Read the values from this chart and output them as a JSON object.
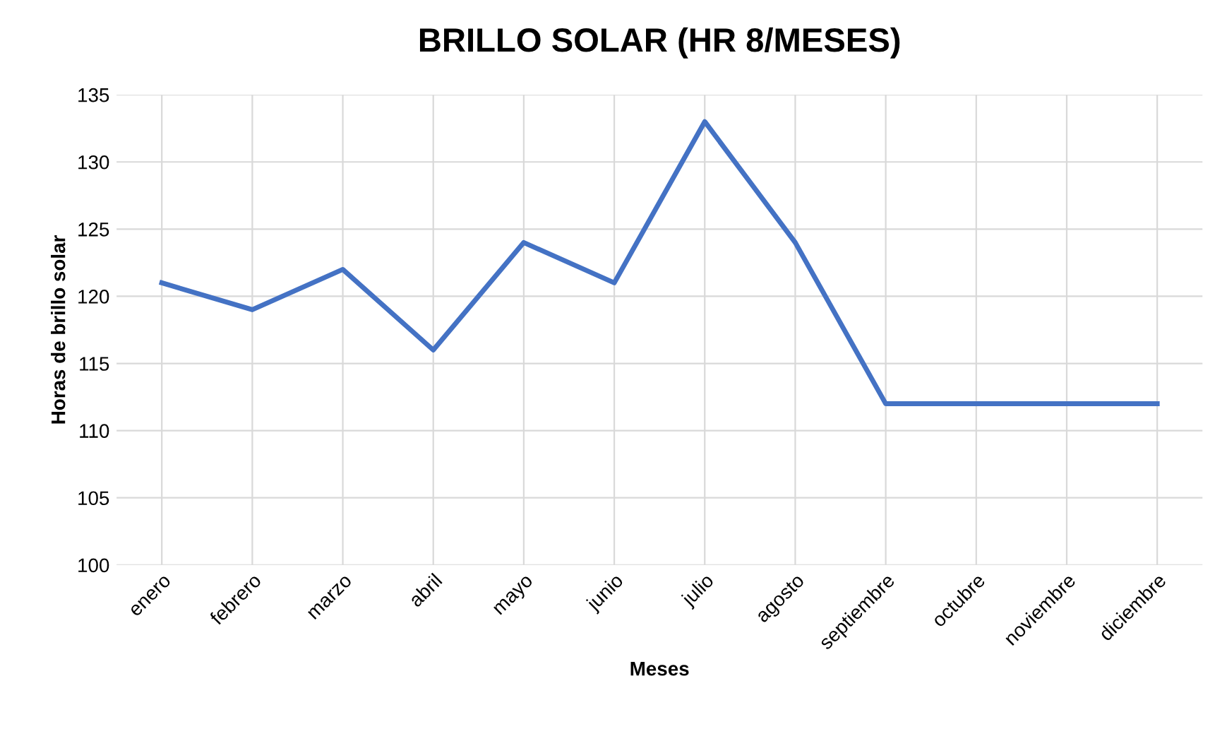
{
  "chart_data": {
    "type": "line",
    "title": "BRILLO SOLAR (HR 8/MESES)",
    "xlabel": "Meses",
    "ylabel": "Horas de brillo solar",
    "categories": [
      "enero",
      "febrero",
      "marzo",
      "abril",
      "mayo",
      "junio",
      "julio",
      "agosto",
      "septiembre",
      "octubre",
      "noviembre",
      "diciembre"
    ],
    "series": [
      {
        "color": "#4472c4",
        "values": [
          121,
          119,
          122,
          116,
          124,
          121,
          133,
          124,
          112,
          112,
          112,
          112
        ]
      }
    ],
    "ylim": [
      100,
      135
    ],
    "yticks": [
      100,
      105,
      110,
      115,
      120,
      125,
      130,
      135
    ],
    "grid": true
  }
}
